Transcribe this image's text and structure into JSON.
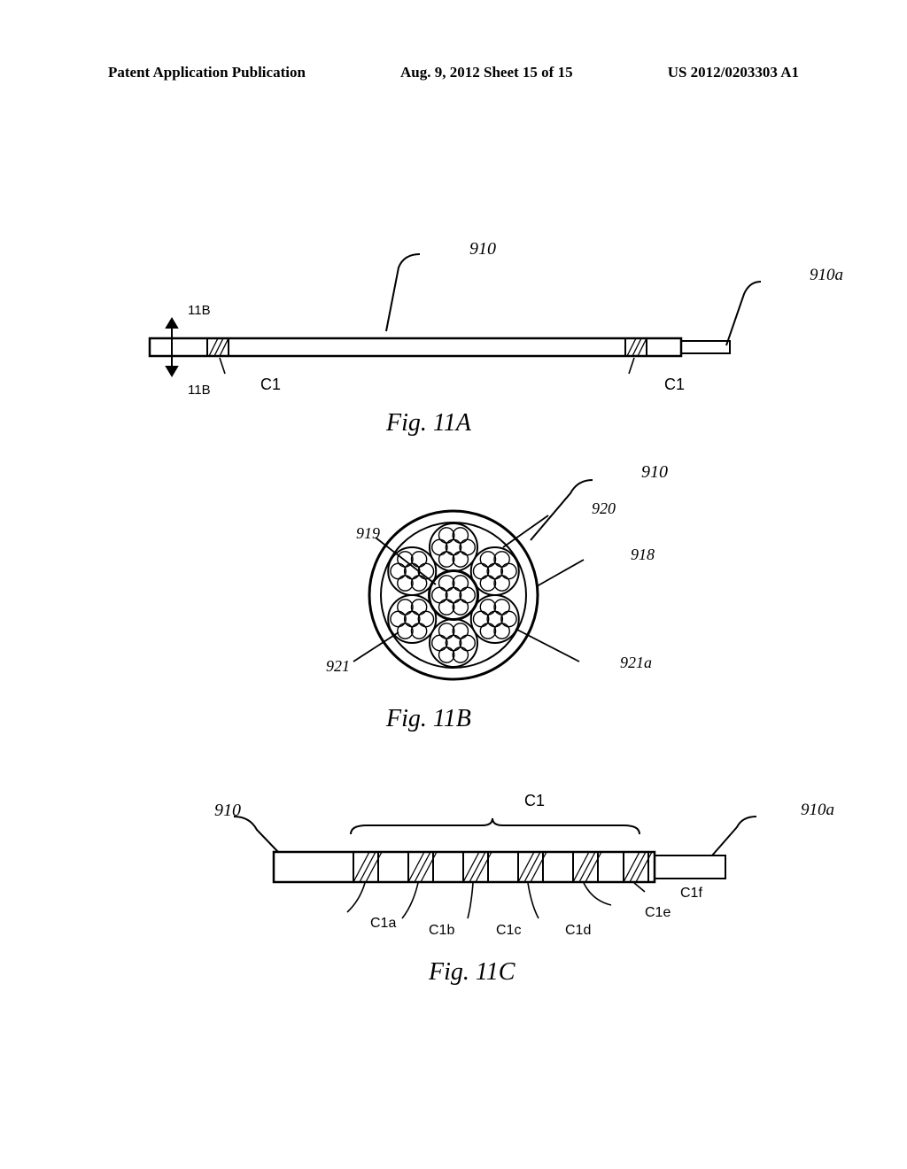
{
  "header": {
    "left": "Patent Application Publication",
    "center": "Aug. 9, 2012  Sheet 15 of 15",
    "right": "US 2012/0203303 A1"
  },
  "figA": {
    "caption": "Fig. 11A",
    "ref_910_top": "910",
    "ref_910a": "910a",
    "c1_left": "C1",
    "c1_right": "C1",
    "sectline_top": "11B",
    "sectline_bot": "11B"
  },
  "figB": {
    "caption": "Fig. 11B",
    "ref_910": "910",
    "ref_919": "919",
    "ref_920": "920",
    "ref_918": "918",
    "ref_921": "921",
    "ref_921a": "921a"
  },
  "figC": {
    "caption": "Fig. 11C",
    "ref_910": "910",
    "ref_910a": "910a",
    "c1": "C1",
    "c1a": "C1a",
    "c1b": "C1b",
    "c1c": "C1c",
    "c1d": "C1d",
    "c1e": "C1e",
    "c1f": "C1f"
  },
  "style": {
    "stroke": "#000000",
    "stroke_width_thin": 2,
    "stroke_width_med": 2.5,
    "stroke_width_thick": 3,
    "bg": "#ffffff"
  }
}
